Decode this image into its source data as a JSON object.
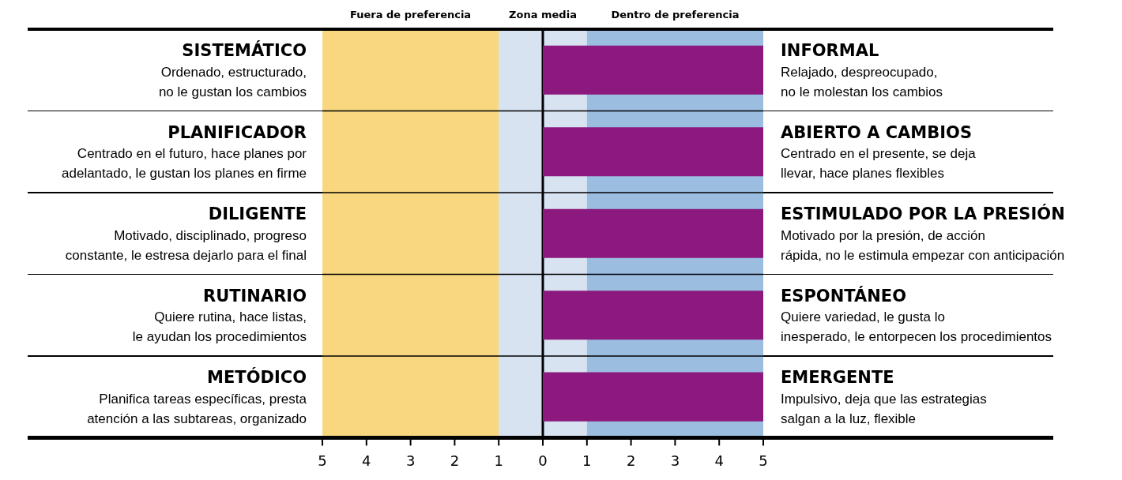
{
  "chart_data": {
    "type": "bar",
    "orientation": "horizontal",
    "categories": [
      "SISTEMÁTICO",
      "PLANIFICADOR",
      "DILIGENTE",
      "RUTINARIO",
      "METÓDICO"
    ],
    "series": [
      {
        "color": "#8b197e",
        "values": [
          5,
          5,
          5,
          5,
          5
        ]
      }
    ],
    "xlim": [
      -5,
      5
    ],
    "xticks": [
      {
        "value": -5,
        "label": "5"
      },
      {
        "value": -4,
        "label": "4"
      },
      {
        "value": -3,
        "label": "3"
      },
      {
        "value": -2,
        "label": "2"
      },
      {
        "value": -1,
        "label": "1"
      },
      0,
      1,
      2,
      3,
      4,
      5
    ],
    "bands": [
      {
        "axis": "x",
        "from": -5,
        "to": -1,
        "label": "Fuera de preferencia",
        "color": "#f8d77e"
      },
      {
        "axis": "x",
        "from": -1,
        "to": 1,
        "label": "Zona media",
        "color": "#d7e3f1"
      },
      {
        "axis": "x",
        "from": 1,
        "to": 5,
        "label": "Dentro de preferencia",
        "color": "#9abde0"
      }
    ],
    "ref_lines": [
      {
        "axis": "x",
        "value": 0,
        "color": "#000000"
      }
    ],
    "annotations": [
      "Ordenado, estructurado,\nno le gustan los cambios",
      "INFORMAL",
      "Relajado, despreocupado,\nno le molestan los cambios",
      "Centrado en el futuro, hace planes por\nadelantado, le gustan los planes en firme",
      "ABIERTO A CAMBIOS",
      "Centrado en el presente, se deja\nllevar, hace planes flexibles",
      "Motivado, disciplinado, progreso\nconstante, le estresa dejarlo para el final",
      "ESTIMULADO POR LA PRESIÓN",
      "Motivado por la presión, de acción\nrápida, no le estimula empezar con anticipación",
      "Quiere rutina, hace listas,\nle ayudan los procedimientos",
      "ESPONTÁNEO",
      "Quiere variedad, le gusta lo\ninesperado, le entorpecen los procedimientos",
      "Planifica tareas específicas, presta\natención a las subtareas, organizado",
      "EMERGENTE",
      "Impulsivo, deja que las estrategias\nsalgan a la luz, flexible"
    ],
    "legend": false,
    "grid": false
  }
}
